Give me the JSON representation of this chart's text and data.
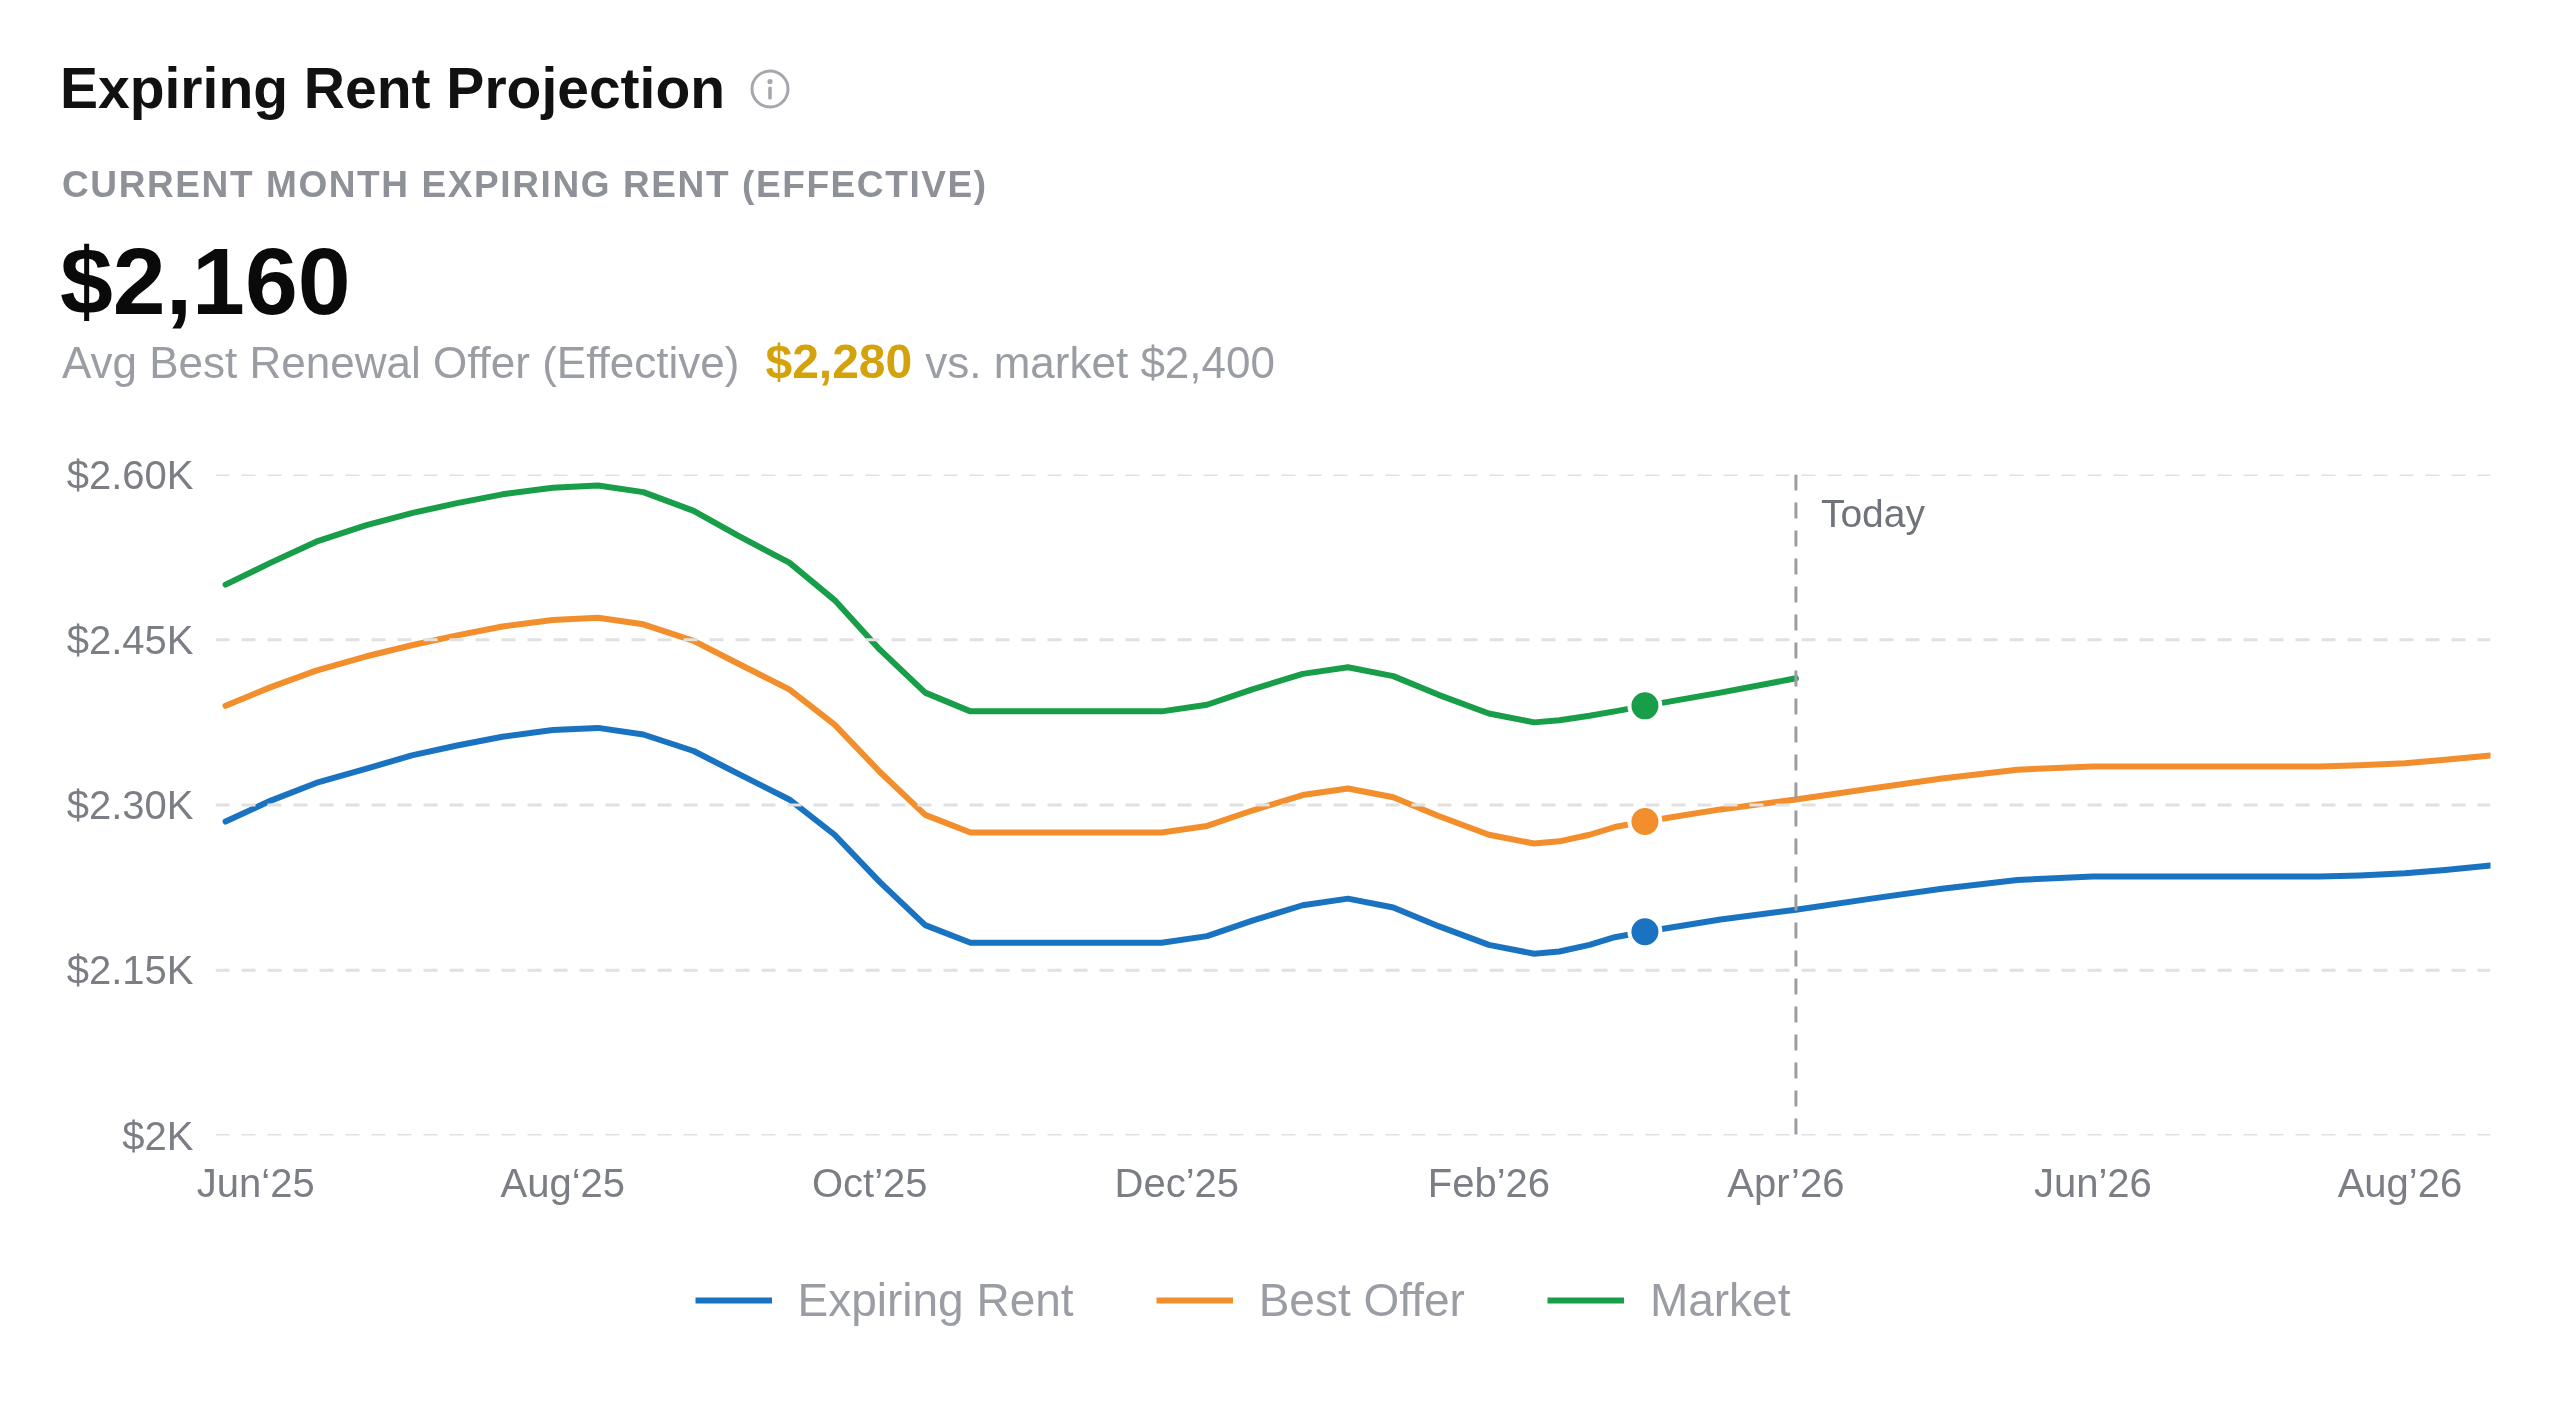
{
  "chart_data": {
    "type": "line",
    "title": "Expiring Rent Projection",
    "subtitle": "CURRENT MONTH EXPIRING RENT (EFFECTIVE)",
    "annotations": [
      "$2,160",
      "Avg Best Renewal Offer (Effective)",
      "$2,280",
      "vs. market $2,400"
    ],
    "xlim": [
      "2025-05-24",
      "2026-08-19"
    ],
    "xticks": [
      {
        "value": "2025-06",
        "label": "Jun‘25"
      },
      {
        "value": "2025-08",
        "label": "Aug‘25"
      },
      {
        "value": "2025-10",
        "label": "Oct’25"
      },
      {
        "value": "2025-12",
        "label": "Dec’25"
      },
      {
        "value": "2026-02",
        "label": "Feb’26"
      },
      {
        "value": "2026-04",
        "label": "Apr’26"
      },
      {
        "value": "2026-06",
        "label": "Jun’26"
      },
      {
        "value": "2026-08",
        "label": "Aug’26"
      }
    ],
    "ylim": [
      2000,
      2600
    ],
    "yticks": [
      {
        "value": 2000,
        "label": "$2K"
      },
      {
        "value": 2150,
        "label": "$2.15K"
      },
      {
        "value": 2300,
        "label": "$2.30K"
      },
      {
        "value": 2450,
        "label": "$2.45K"
      },
      {
        "value": 2600,
        "label": "$2.60K"
      }
    ],
    "grid": "y",
    "legend": "bottom",
    "line_style": "solid",
    "series": [
      {
        "name": "Expiring Rent",
        "color": "#1a73c1",
        "x": [
          "2025-05-26",
          "2025-06-04",
          "2025-06-13",
          "2025-06-23",
          "2025-07-02",
          "2025-07-11",
          "2025-07-20",
          "2025-07-30",
          "2025-08-08",
          "2025-08-17",
          "2025-08-27",
          "2025-09-05",
          "2025-09-15",
          "2025-09-24",
          "2025-10-03",
          "2025-10-12",
          "2025-10-21",
          "2025-11-28",
          "2025-12-07",
          "2025-12-16",
          "2025-12-26",
          "2026-01-04",
          "2026-01-13",
          "2026-01-22",
          "2026-02-01",
          "2026-02-10",
          "2026-02-15",
          "2026-02-21",
          "2026-02-26",
          "2026-03-04",
          "2026-03-19",
          "2026-04-03",
          "2026-04-18",
          "2026-05-02",
          "2026-05-17",
          "2026-06-01",
          "2026-07-16",
          "2026-07-24",
          "2026-08-02",
          "2026-08-10",
          "2026-08-19"
        ],
        "values": [
          2285,
          2304,
          2320,
          2333,
          2345,
          2354,
          2362,
          2368,
          2370,
          2364,
          2349,
          2328,
          2305,
          2273,
          2230,
          2191,
          2175,
          2175,
          2181,
          2195,
          2209,
          2215,
          2207,
          2190,
          2173,
          2165,
          2167,
          2173,
          2180,
          2185,
          2196,
          2205,
          2215,
          2224,
          2232,
          2235,
          2235,
          2236,
          2238,
          2241,
          2245
        ]
      },
      {
        "name": "Best Offer",
        "color": "#f28e2b",
        "x": [
          "2025-05-26",
          "2025-06-04",
          "2025-06-13",
          "2025-06-23",
          "2025-07-02",
          "2025-07-11",
          "2025-07-20",
          "2025-07-30",
          "2025-08-08",
          "2025-08-17",
          "2025-08-27",
          "2025-09-05",
          "2025-09-15",
          "2025-09-24",
          "2025-10-03",
          "2025-10-12",
          "2025-10-21",
          "2025-11-28",
          "2025-12-07",
          "2025-12-16",
          "2025-12-26",
          "2026-01-04",
          "2026-01-13",
          "2026-01-22",
          "2026-02-01",
          "2026-02-10",
          "2026-02-15",
          "2026-02-21",
          "2026-02-26",
          "2026-03-04",
          "2026-03-19",
          "2026-04-03",
          "2026-04-18",
          "2026-05-02",
          "2026-05-17",
          "2026-06-01",
          "2026-07-16",
          "2026-07-24",
          "2026-08-02",
          "2026-08-10",
          "2026-08-19"
        ],
        "values": [
          2390,
          2407,
          2422,
          2435,
          2445,
          2454,
          2462,
          2468,
          2470,
          2464,
          2449,
          2428,
          2405,
          2373,
          2330,
          2291,
          2275,
          2275,
          2281,
          2295,
          2309,
          2315,
          2307,
          2290,
          2273,
          2265,
          2267,
          2273,
          2280,
          2285,
          2296,
          2305,
          2315,
          2324,
          2332,
          2335,
          2335,
          2336,
          2338,
          2341,
          2345
        ]
      },
      {
        "name": "Market",
        "color": "#189d48",
        "x": [
          "2025-05-26",
          "2025-06-04",
          "2025-06-13",
          "2025-06-23",
          "2025-07-02",
          "2025-07-11",
          "2025-07-20",
          "2025-07-30",
          "2025-08-08",
          "2025-08-17",
          "2025-08-27",
          "2025-09-05",
          "2025-09-15",
          "2025-09-24",
          "2025-10-03",
          "2025-10-12",
          "2025-10-21",
          "2025-11-28",
          "2025-12-07",
          "2025-12-16",
          "2025-12-26",
          "2026-01-04",
          "2026-01-13",
          "2026-01-22",
          "2026-02-01",
          "2026-02-10",
          "2026-02-15",
          "2026-02-21",
          "2026-02-26",
          "2026-03-04",
          "2026-03-19",
          "2026-04-03"
        ],
        "values": [
          2500,
          2520,
          2539,
          2554,
          2565,
          2574,
          2582,
          2588,
          2590,
          2584,
          2567,
          2544,
          2520,
          2486,
          2441,
          2402,
          2385,
          2385,
          2391,
          2405,
          2419,
          2425,
          2417,
          2400,
          2383,
          2375,
          2377,
          2381,
          2385,
          2390,
          2402,
          2415
        ]
      },
      {
        "type": "scatter",
        "marker": "circle",
        "color": "#1a73c1",
        "x": [
          "2026-03-04"
        ],
        "values": [
          2185
        ]
      },
      {
        "type": "scatter",
        "marker": "circle",
        "color": "#f28e2b",
        "x": [
          "2026-03-04"
        ],
        "values": [
          2285
        ]
      },
      {
        "type": "scatter",
        "marker": "circle",
        "color": "#189d48",
        "x": [
          "2026-03-04"
        ],
        "values": [
          2390
        ]
      }
    ],
    "ref_lines": [
      {
        "axis": "x",
        "value": "2026-04-03",
        "label": "Today",
        "color": "#9b9da2",
        "line_style": "dashed"
      }
    ]
  }
}
